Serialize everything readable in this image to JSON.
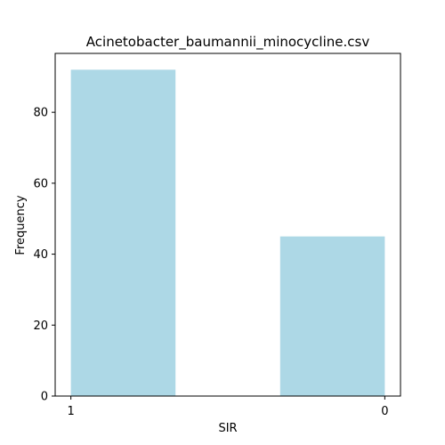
{
  "chart_data": {
    "type": "bar",
    "title": "Acinetobacter_baumannii_minocycline.csv",
    "xlabel": "SIR",
    "ylabel": "Frequency",
    "categories": [
      "1",
      "0"
    ],
    "values": [
      92,
      45
    ],
    "x_ticks": [
      "1",
      "0"
    ],
    "y_ticks": [
      0,
      20,
      40,
      60,
      80
    ],
    "ylim": [
      0,
      96.6
    ],
    "grid": false,
    "bar_color": "#add8e6"
  }
}
